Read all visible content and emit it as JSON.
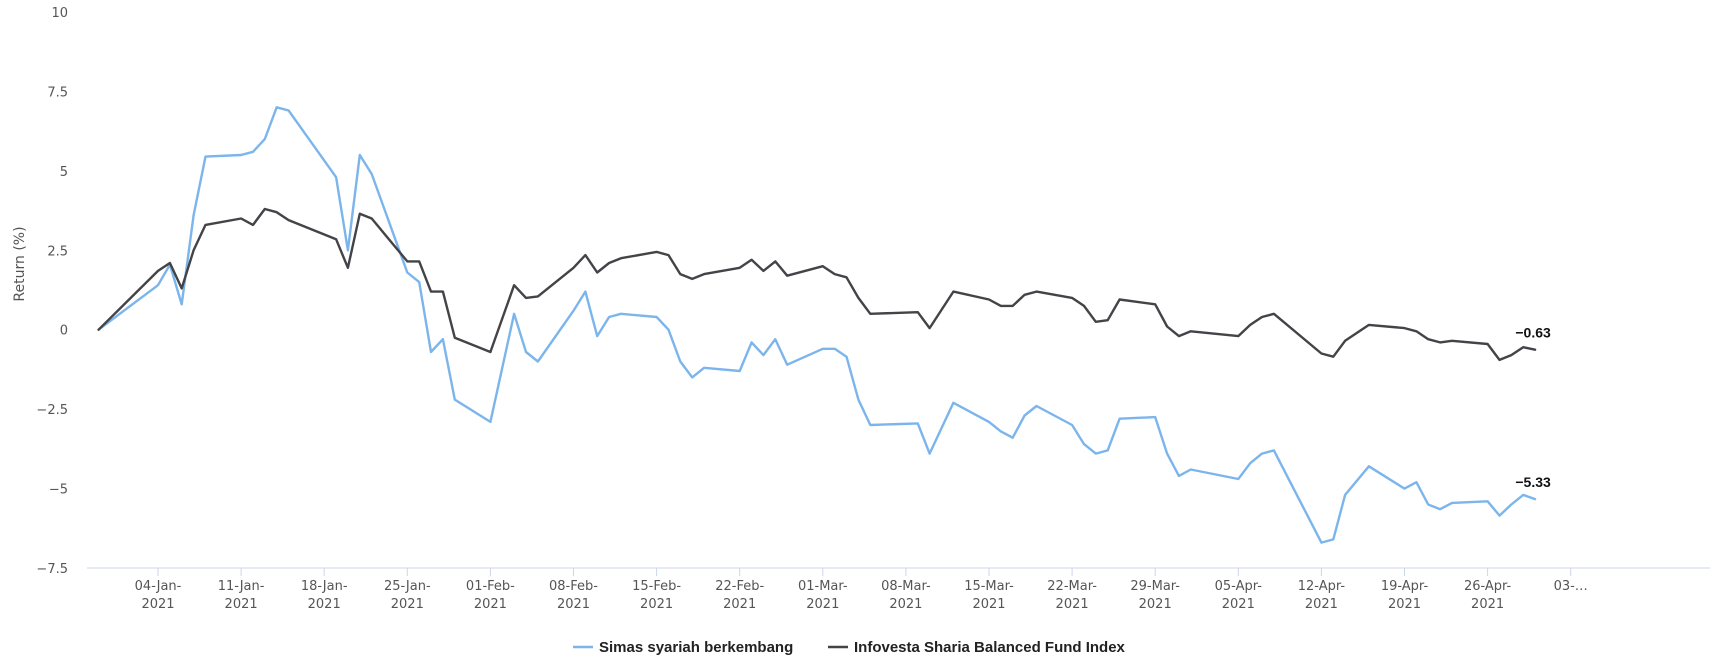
{
  "chart_data": {
    "type": "line",
    "ylabel": "Return (%)",
    "ylim": [
      -7.5,
      10
    ],
    "yticks": [
      "10",
      "7.5",
      "5",
      "2.5",
      "0",
      "−2.5",
      "−5",
      "−7.5"
    ],
    "ytick_values": [
      10,
      7.5,
      5,
      2.5,
      0,
      -2.5,
      -5,
      -7.5
    ],
    "xlim": [
      "2020-12-29",
      "2021-05-04"
    ],
    "xticks": [
      {
        "date": "2021-01-04",
        "line1": "04-Jan-",
        "line2": "2021"
      },
      {
        "date": "2021-01-11",
        "line1": "11-Jan-",
        "line2": "2021"
      },
      {
        "date": "2021-01-18",
        "line1": "18-Jan-",
        "line2": "2021"
      },
      {
        "date": "2021-01-25",
        "line1": "25-Jan-",
        "line2": "2021"
      },
      {
        "date": "2021-02-01",
        "line1": "01-Feb-",
        "line2": "2021"
      },
      {
        "date": "2021-02-08",
        "line1": "08-Feb-",
        "line2": "2021"
      },
      {
        "date": "2021-02-15",
        "line1": "15-Feb-",
        "line2": "2021"
      },
      {
        "date": "2021-02-22",
        "line1": "22-Feb-",
        "line2": "2021"
      },
      {
        "date": "2021-03-01",
        "line1": "01-Mar-",
        "line2": "2021"
      },
      {
        "date": "2021-03-08",
        "line1": "08-Mar-",
        "line2": "2021"
      },
      {
        "date": "2021-03-15",
        "line1": "15-Mar-",
        "line2": "2021"
      },
      {
        "date": "2021-03-22",
        "line1": "22-Mar-",
        "line2": "2021"
      },
      {
        "date": "2021-03-29",
        "line1": "29-Mar-",
        "line2": "2021"
      },
      {
        "date": "2021-04-05",
        "line1": "05-Apr-",
        "line2": "2021"
      },
      {
        "date": "2021-04-12",
        "line1": "12-Apr-",
        "line2": "2021"
      },
      {
        "date": "2021-04-19",
        "line1": "19-Apr-",
        "line2": "2021"
      },
      {
        "date": "2021-04-26",
        "line1": "26-Apr-",
        "line2": "2021"
      },
      {
        "date": "2021-05-03",
        "line1": "03-…",
        "line2": ""
      }
    ],
    "grid": false,
    "legend_position": "bottom-center",
    "series": [
      {
        "name": "Simas syariah berkembang",
        "color": "#7cb5ec",
        "end_label": "−5.33",
        "points": [
          [
            "2020-12-30",
            0
          ],
          [
            "2021-01-04",
            1.4
          ],
          [
            "2021-01-05",
            2.05
          ],
          [
            "2021-01-06",
            0.8
          ],
          [
            "2021-01-07",
            3.6
          ],
          [
            "2021-01-08",
            5.45
          ],
          [
            "2021-01-11",
            5.5
          ],
          [
            "2021-01-12",
            5.6
          ],
          [
            "2021-01-13",
            6.0
          ],
          [
            "2021-01-14",
            7.0
          ],
          [
            "2021-01-15",
            6.9
          ],
          [
            "2021-01-19",
            4.8
          ],
          [
            "2021-01-20",
            2.5
          ],
          [
            "2021-01-21",
            5.5
          ],
          [
            "2021-01-22",
            4.9
          ],
          [
            "2021-01-25",
            1.8
          ],
          [
            "2021-01-26",
            1.5
          ],
          [
            "2021-01-27",
            -0.7
          ],
          [
            "2021-01-28",
            -0.3
          ],
          [
            "2021-01-29",
            -2.2
          ],
          [
            "2021-02-01",
            -2.9
          ],
          [
            "2021-02-03",
            0.5
          ],
          [
            "2021-02-04",
            -0.7
          ],
          [
            "2021-02-05",
            -1.0
          ],
          [
            "2021-02-08",
            0.6
          ],
          [
            "2021-02-09",
            1.2
          ],
          [
            "2021-02-10",
            -0.2
          ],
          [
            "2021-02-11",
            0.4
          ],
          [
            "2021-02-12",
            0.5
          ],
          [
            "2021-02-15",
            0.4
          ],
          [
            "2021-02-16",
            0.0
          ],
          [
            "2021-02-17",
            -1.0
          ],
          [
            "2021-02-18",
            -1.5
          ],
          [
            "2021-02-19",
            -1.2
          ],
          [
            "2021-02-22",
            -1.3
          ],
          [
            "2021-02-23",
            -0.4
          ],
          [
            "2021-02-24",
            -0.8
          ],
          [
            "2021-02-25",
            -0.3
          ],
          [
            "2021-02-26",
            -1.1
          ],
          [
            "2021-03-01",
            -0.6
          ],
          [
            "2021-03-02",
            -0.6
          ],
          [
            "2021-03-03",
            -0.85
          ],
          [
            "2021-03-04",
            -2.2
          ],
          [
            "2021-03-05",
            -3.0
          ],
          [
            "2021-03-09",
            -2.95
          ],
          [
            "2021-03-10",
            -3.9
          ],
          [
            "2021-03-12",
            -2.3
          ],
          [
            "2021-03-15",
            -2.9
          ],
          [
            "2021-03-16",
            -3.2
          ],
          [
            "2021-03-17",
            -3.4
          ],
          [
            "2021-03-18",
            -2.7
          ],
          [
            "2021-03-19",
            -2.4
          ],
          [
            "2021-03-22",
            -3.0
          ],
          [
            "2021-03-23",
            -3.6
          ],
          [
            "2021-03-24",
            -3.9
          ],
          [
            "2021-03-25",
            -3.8
          ],
          [
            "2021-03-26",
            -2.8
          ],
          [
            "2021-03-29",
            -2.75
          ],
          [
            "2021-03-30",
            -3.9
          ],
          [
            "2021-03-31",
            -4.6
          ],
          [
            "2021-04-01",
            -4.4
          ],
          [
            "2021-04-05",
            -4.7
          ],
          [
            "2021-04-06",
            -4.2
          ],
          [
            "2021-04-07",
            -3.9
          ],
          [
            "2021-04-08",
            -3.8
          ],
          [
            "2021-04-12",
            -6.7
          ],
          [
            "2021-04-13",
            -6.6
          ],
          [
            "2021-04-14",
            -5.2
          ],
          [
            "2021-04-16",
            -4.3
          ],
          [
            "2021-04-19",
            -5.0
          ],
          [
            "2021-04-20",
            -4.8
          ],
          [
            "2021-04-21",
            -5.5
          ],
          [
            "2021-04-22",
            -5.65
          ],
          [
            "2021-04-23",
            -5.45
          ],
          [
            "2021-04-26",
            -5.4
          ],
          [
            "2021-04-27",
            -5.85
          ],
          [
            "2021-04-28",
            -5.5
          ],
          [
            "2021-04-29",
            -5.2
          ],
          [
            "2021-04-30",
            -5.33
          ]
        ]
      },
      {
        "name": "Infovesta Sharia Balanced Fund Index",
        "color": "#434348",
        "end_label": "−0.63",
        "points": [
          [
            "2020-12-30",
            0
          ],
          [
            "2021-01-04",
            1.85
          ],
          [
            "2021-01-05",
            2.1
          ],
          [
            "2021-01-06",
            1.3
          ],
          [
            "2021-01-07",
            2.5
          ],
          [
            "2021-01-08",
            3.3
          ],
          [
            "2021-01-11",
            3.5
          ],
          [
            "2021-01-12",
            3.3
          ],
          [
            "2021-01-13",
            3.8
          ],
          [
            "2021-01-14",
            3.7
          ],
          [
            "2021-01-15",
            3.45
          ],
          [
            "2021-01-19",
            2.85
          ],
          [
            "2021-01-20",
            1.95
          ],
          [
            "2021-01-21",
            3.65
          ],
          [
            "2021-01-22",
            3.5
          ],
          [
            "2021-01-25",
            2.15
          ],
          [
            "2021-01-26",
            2.15
          ],
          [
            "2021-01-27",
            1.2
          ],
          [
            "2021-01-28",
            1.2
          ],
          [
            "2021-01-29",
            -0.25
          ],
          [
            "2021-02-01",
            -0.7
          ],
          [
            "2021-02-03",
            1.4
          ],
          [
            "2021-02-04",
            1.0
          ],
          [
            "2021-02-05",
            1.05
          ],
          [
            "2021-02-08",
            1.95
          ],
          [
            "2021-02-09",
            2.35
          ],
          [
            "2021-02-10",
            1.8
          ],
          [
            "2021-02-11",
            2.1
          ],
          [
            "2021-02-12",
            2.25
          ],
          [
            "2021-02-15",
            2.45
          ],
          [
            "2021-02-16",
            2.35
          ],
          [
            "2021-02-17",
            1.75
          ],
          [
            "2021-02-18",
            1.6
          ],
          [
            "2021-02-19",
            1.75
          ],
          [
            "2021-02-22",
            1.95
          ],
          [
            "2021-02-23",
            2.2
          ],
          [
            "2021-02-24",
            1.85
          ],
          [
            "2021-02-25",
            2.15
          ],
          [
            "2021-02-26",
            1.7
          ],
          [
            "2021-03-01",
            2.0
          ],
          [
            "2021-03-02",
            1.75
          ],
          [
            "2021-03-03",
            1.65
          ],
          [
            "2021-03-04",
            1.0
          ],
          [
            "2021-03-05",
            0.5
          ],
          [
            "2021-03-09",
            0.55
          ],
          [
            "2021-03-10",
            0.05
          ],
          [
            "2021-03-12",
            1.2
          ],
          [
            "2021-03-15",
            0.95
          ],
          [
            "2021-03-16",
            0.75
          ],
          [
            "2021-03-17",
            0.75
          ],
          [
            "2021-03-18",
            1.1
          ],
          [
            "2021-03-19",
            1.2
          ],
          [
            "2021-03-22",
            1.0
          ],
          [
            "2021-03-23",
            0.75
          ],
          [
            "2021-03-24",
            0.25
          ],
          [
            "2021-03-25",
            0.3
          ],
          [
            "2021-03-26",
            0.95
          ],
          [
            "2021-03-29",
            0.8
          ],
          [
            "2021-03-30",
            0.1
          ],
          [
            "2021-03-31",
            -0.2
          ],
          [
            "2021-04-01",
            -0.05
          ],
          [
            "2021-04-05",
            -0.2
          ],
          [
            "2021-04-06",
            0.15
          ],
          [
            "2021-04-07",
            0.4
          ],
          [
            "2021-04-08",
            0.5
          ],
          [
            "2021-04-12",
            -0.75
          ],
          [
            "2021-04-13",
            -0.85
          ],
          [
            "2021-04-14",
            -0.35
          ],
          [
            "2021-04-16",
            0.15
          ],
          [
            "2021-04-19",
            0.05
          ],
          [
            "2021-04-20",
            -0.05
          ],
          [
            "2021-04-21",
            -0.3
          ],
          [
            "2021-04-22",
            -0.4
          ],
          [
            "2021-04-23",
            -0.35
          ],
          [
            "2021-04-26",
            -0.45
          ],
          [
            "2021-04-27",
            -0.95
          ],
          [
            "2021-04-28",
            -0.8
          ],
          [
            "2021-04-29",
            -0.55
          ],
          [
            "2021-04-30",
            -0.63
          ]
        ]
      }
    ]
  }
}
